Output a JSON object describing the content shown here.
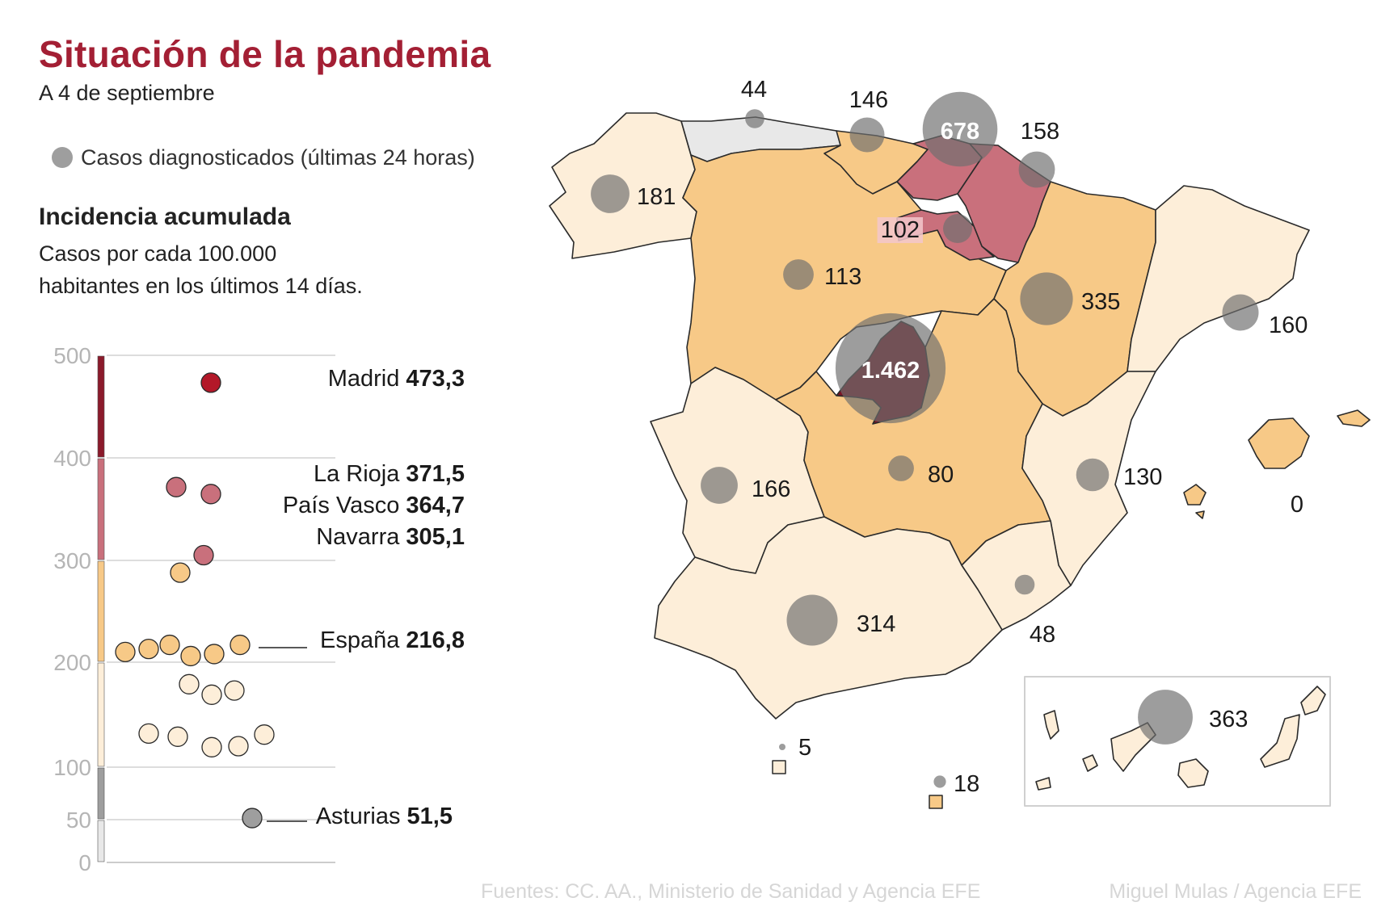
{
  "header": {
    "title": "Situación de la pandemia",
    "subtitle": "A 4 de septiembre"
  },
  "legend": {
    "cases_label": "Casos diagnosticados (últimas 24 horas)"
  },
  "incidence": {
    "title": "Incidencia acumulada",
    "description_line1": "Casos por cada 100.000",
    "description_line2": "habitantes en los últimos 14 días."
  },
  "footer": {
    "sources": "Fuentes: CC. AA., Ministerio de Sanidad y Agencia EFE",
    "author": "Miguel Mulas / Agencia EFE"
  },
  "colors": {
    "title": "#a31f34",
    "band_over_400": "#8b1a2b",
    "band_300_400": "#c9707c",
    "band_200_300": "#f7c987",
    "band_100_200": "#fdeed9",
    "band_50_100": "#9e9e9e",
    "band_0_50": "#e8e8e8",
    "bubble": "#6b6b6b",
    "madrid_dot": "#b31829"
  },
  "chart_data": [
    {
      "type": "scatter",
      "title": "Incidencia acumulada",
      "ylim": [
        0,
        500
      ],
      "y_ticks": [
        "500",
        "400",
        "300",
        "200",
        "100",
        "50",
        "0"
      ],
      "y_tick_values": [
        500,
        400,
        300,
        200,
        100,
        50,
        0
      ],
      "bands": [
        {
          "from": 400,
          "to": 500,
          "color": "#8b1a2b"
        },
        {
          "from": 300,
          "to": 400,
          "color": "#c9707c"
        },
        {
          "from": 200,
          "to": 300,
          "color": "#f7c987"
        },
        {
          "from": 100,
          "to": 200,
          "color": "#fdeed9"
        },
        {
          "from": 50,
          "to": 100,
          "color": "#9e9e9e"
        },
        {
          "from": 0,
          "to": 50,
          "color": "#e8e8e8"
        }
      ],
      "points": [
        {
          "value": 473.3,
          "color": "#b31829"
        },
        {
          "value": 371.5,
          "color": "#c9707c"
        },
        {
          "value": 364.7,
          "color": "#c9707c"
        },
        {
          "value": 305.1,
          "color": "#c9707c"
        },
        {
          "value": 288,
          "color": "#f7c987"
        },
        {
          "value": 217,
          "color": "#f7c987"
        },
        {
          "value": 213,
          "color": "#f7c987"
        },
        {
          "value": 210,
          "color": "#f7c987"
        },
        {
          "value": 206,
          "color": "#f7c987"
        },
        {
          "value": 217,
          "color": "#f7c987"
        },
        {
          "value": 208,
          "color": "#f7c987"
        },
        {
          "value": 179,
          "color": "#fdeed9"
        },
        {
          "value": 169,
          "color": "#fdeed9"
        },
        {
          "value": 173,
          "color": "#fdeed9"
        },
        {
          "value": 132,
          "color": "#fdeed9"
        },
        {
          "value": 129,
          "color": "#fdeed9"
        },
        {
          "value": 119,
          "color": "#fdeed9"
        },
        {
          "value": 120,
          "color": "#fdeed9"
        },
        {
          "value": 131,
          "color": "#fdeed9"
        },
        {
          "value": 51.5,
          "color": "#9e9e9e"
        }
      ],
      "labels": [
        {
          "name": "Madrid",
          "value": "473,3"
        },
        {
          "name": "La Rioja",
          "value": "371,5"
        },
        {
          "name": "País Vasco",
          "value": "364,7"
        },
        {
          "name": "Navarra",
          "value": "305,1"
        },
        {
          "name": "España",
          "value": "216,8"
        },
        {
          "name": "Asturias",
          "value": "51,5"
        }
      ]
    },
    {
      "type": "bubble-map",
      "title": "Casos diagnosticados (últimas 24 horas)",
      "regions": [
        {
          "name": "Asturias",
          "cases": "44",
          "value": 44
        },
        {
          "name": "Cantabria",
          "cases": "146",
          "value": 146
        },
        {
          "name": "País Vasco",
          "cases": "678",
          "value": 678
        },
        {
          "name": "Navarra",
          "cases": "158",
          "value": 158
        },
        {
          "name": "Galicia",
          "cases": "181",
          "value": 181
        },
        {
          "name": "La Rioja",
          "cases": "102",
          "value": 102
        },
        {
          "name": "Castilla y León",
          "cases": "113",
          "value": 113
        },
        {
          "name": "Aragón",
          "cases": "335",
          "value": 335
        },
        {
          "name": "Cataluña",
          "cases": "160",
          "value": 160
        },
        {
          "name": "Madrid",
          "cases": "1.462",
          "value": 1462
        },
        {
          "name": "Castilla-La Mancha",
          "cases": "80",
          "value": 80
        },
        {
          "name": "Extremadura",
          "cases": "166",
          "value": 166
        },
        {
          "name": "C. Valenciana",
          "cases": "130",
          "value": 130
        },
        {
          "name": "Baleares",
          "cases": "0",
          "value": 0
        },
        {
          "name": "Andalucía",
          "cases": "314",
          "value": 314
        },
        {
          "name": "Murcia",
          "cases": "48",
          "value": 48
        },
        {
          "name": "Ceuta",
          "cases": "5",
          "value": 5
        },
        {
          "name": "Melilla",
          "cases": "18",
          "value": 18
        },
        {
          "name": "Canarias",
          "cases": "363",
          "value": 363
        }
      ]
    }
  ]
}
